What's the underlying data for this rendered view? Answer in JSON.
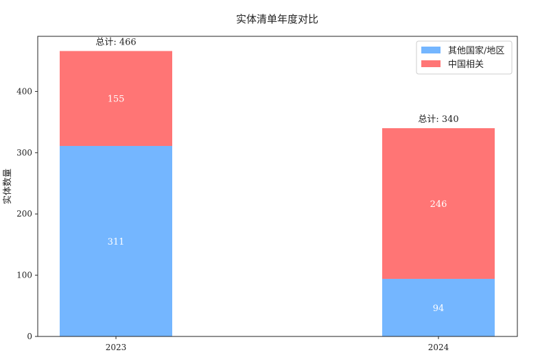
{
  "chart_data": {
    "type": "bar",
    "stacked": true,
    "title": "实体清单年度对比",
    "xlabel": "",
    "ylabel": "实体数量",
    "categories": [
      "2023",
      "2024"
    ],
    "series": [
      {
        "name": "其他国家/地区",
        "values": [
          311,
          94
        ],
        "color": "#74b6ff"
      },
      {
        "name": "中国相关",
        "values": [
          155,
          246
        ],
        "color": "#ff7575"
      }
    ],
    "totals": [
      466,
      340
    ],
    "total_prefix": "总计: ",
    "ylim": [
      0,
      490
    ],
    "yticks": [
      0,
      100,
      200,
      300,
      400
    ],
    "grid": false,
    "legend_position": "top-right"
  }
}
